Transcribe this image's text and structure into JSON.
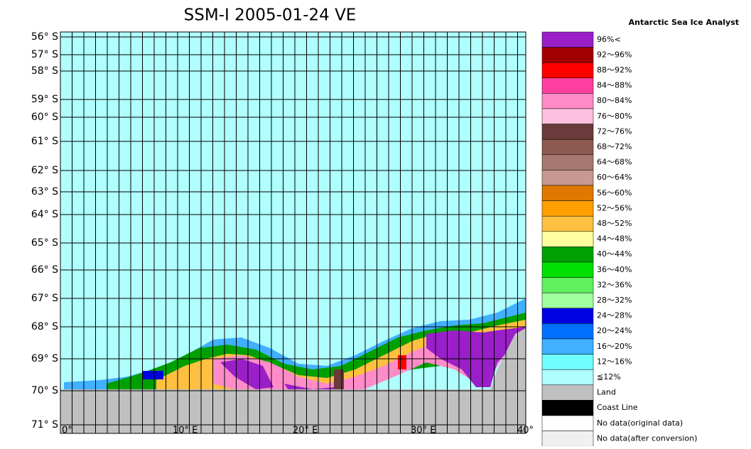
{
  "title": "SSM-I 2005-01-24 VE",
  "legend_title": "Antarctic Sea Ice Analyst",
  "lat_labels": [
    "56° S",
    "57° S",
    "58° S",
    "59° S",
    "60° S",
    "61° S",
    "62° S",
    "63° S",
    "64° S",
    "65° S",
    "66° S",
    "67° S",
    "68° S",
    "69° S",
    "70° S",
    "71° S"
  ],
  "lon_labels": [
    "0°",
    "10° E",
    "20° E",
    "30° E",
    "40°"
  ],
  "legend": [
    {
      "label": "96%<",
      "color": "#9b1fc8"
    },
    {
      "label": "92～96%",
      "color": "#a00000"
    },
    {
      "label": "88～92%",
      "color": "#ff0000"
    },
    {
      "label": "84～88%",
      "color": "#ff3fa0"
    },
    {
      "label": "80～84%",
      "color": "#ff8cc8"
    },
    {
      "label": "76～80%",
      "color": "#ffc0e0"
    },
    {
      "label": "72～76%",
      "color": "#6b3a3a"
    },
    {
      "label": "68～72%",
      "color": "#8c5a50"
    },
    {
      "label": "64～68%",
      "color": "#a87870"
    },
    {
      "label": "60～64%",
      "color": "#c89890"
    },
    {
      "label": "56～60%",
      "color": "#e07800"
    },
    {
      "label": "52～56%",
      "color": "#ffa000"
    },
    {
      "label": "48～52%",
      "color": "#ffc040"
    },
    {
      "label": "44～48%",
      "color": "#ffffa0"
    },
    {
      "label": "40～44%",
      "color": "#00a000"
    },
    {
      "label": "36～40%",
      "color": "#00e000"
    },
    {
      "label": "32～36%",
      "color": "#60f060"
    },
    {
      "label": "28～32%",
      "color": "#a0ffa0"
    },
    {
      "label": "24～28%",
      "color": "#0000e0"
    },
    {
      "label": "20～24%",
      "color": "#0070ff"
    },
    {
      "label": "16～20%",
      "color": "#40b0ff"
    },
    {
      "label": "12～16%",
      "color": "#70ffff"
    },
    {
      "label": "≦12%",
      "color": "#b0ffff"
    },
    {
      "label": "Land",
      "color": "#c0c0c0"
    },
    {
      "label": "Coast Line",
      "color": "#000000"
    },
    {
      "label": "No data(original data)",
      "color": "#ffffff"
    },
    {
      "label": "No data(after conversion)",
      "color": "#f0f0f0"
    }
  ]
}
